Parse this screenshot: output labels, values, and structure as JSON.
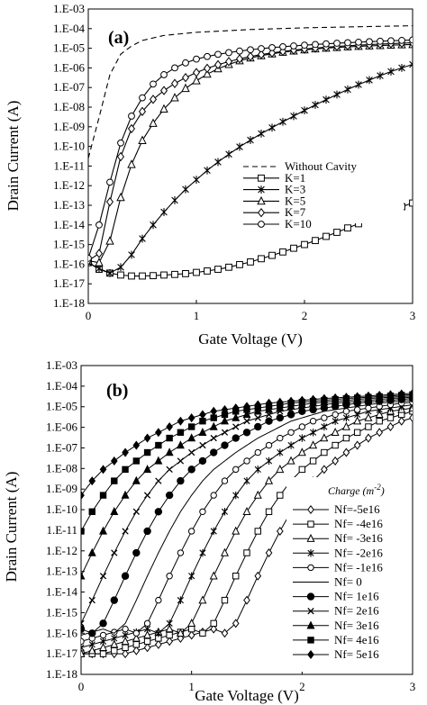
{
  "chart_data": [
    {
      "type": "line",
      "panel_label": "(a)",
      "xlabel": "Gate Voltage (V)",
      "ylabel": "Drain Current (A)",
      "xlim": [
        0,
        3
      ],
      "ylim_log10": [
        -18,
        -3
      ],
      "y_scale": "log",
      "xticks": [
        "0",
        "1",
        "2",
        "3"
      ],
      "yticks": [
        "1.E-03",
        "1.E-04",
        "1.E-05",
        "1.E-06",
        "1.E-07",
        "1.E-08",
        "1.E-09",
        "1.E-10",
        "1.E-11",
        "1.E-12",
        "1.E-13",
        "1.E-14",
        "1.E-15",
        "1.E-16",
        "1.E-17",
        "1.E-18"
      ],
      "grid": false,
      "legend_position": "center-right",
      "series": [
        {
          "name": "Without Cavity",
          "marker": "none",
          "dash": true,
          "x": [
            0,
            0.1,
            0.2,
            0.3,
            0.4,
            0.5,
            0.7,
            1.0,
            1.5,
            2.0,
            2.5,
            3.0
          ],
          "y": [
            "2.5e-11",
            "3e-9",
            "4.5e-7",
            "5e-6",
            "1.3e-5",
            "2.5e-5",
            "4.5e-5",
            "6.5e-5",
            "9e-5",
            "1.1e-4",
            "1.25e-4",
            "1.4e-4"
          ]
        },
        {
          "name": "K=1",
          "marker": "square",
          "x": [
            0,
            0.1,
            0.2,
            0.3,
            0.4,
            0.5,
            0.6,
            0.7,
            0.8,
            0.9,
            1.0,
            1.1,
            1.2,
            1.3,
            1.4,
            1.5,
            1.6,
            1.7,
            1.8,
            1.9,
            2.0,
            2.1,
            2.2,
            2.3,
            2.4,
            2.5,
            2.6,
            2.7,
            2.8,
            2.9,
            3.0
          ],
          "y": [
            "1.2e-16",
            "5.5e-17",
            "3.5e-17",
            "2.8e-17",
            "2.5e-17",
            "2.5e-17",
            "2.6e-17",
            "2.8e-17",
            "3e-17",
            "3.3e-17",
            "3.8e-17",
            "4.5e-17",
            "5.5e-17",
            "7e-17",
            "9.5e-17",
            "1.3e-16",
            "1.9e-16",
            "2.8e-16",
            "4.2e-16",
            "6.5e-16",
            "1e-15",
            "1.6e-15",
            "2.6e-15",
            "4.2e-15",
            "7e-15",
            "1.15e-14",
            "1.9e-14",
            "3.2e-14",
            "5.3e-14",
            "8.5e-14",
            "1.3e-13"
          ]
        },
        {
          "name": "K=3",
          "marker": "star",
          "x": [
            0,
            0.1,
            0.2,
            0.3,
            0.4,
            0.5,
            0.6,
            0.7,
            0.8,
            0.9,
            1.0,
            1.1,
            1.2,
            1.3,
            1.4,
            1.5,
            1.6,
            1.7,
            1.8,
            1.9,
            2.0,
            2.1,
            2.2,
            2.3,
            2.4,
            2.5,
            2.6,
            2.7,
            2.8,
            2.9,
            3.0
          ],
          "y": [
            "1.2e-16",
            "6e-17",
            "3.5e-17",
            "7e-17",
            "3e-16",
            "2e-15",
            "1e-14",
            "4.5e-14",
            "1.8e-13",
            "6.5e-13",
            "2e-12",
            "6e-12",
            "1.6e-11",
            "4e-11",
            "9.5e-11",
            "2.1e-10",
            "4.5e-10",
            "9e-10",
            "1.8e-9",
            "3.5e-9",
            "6.8e-9",
            "1.3e-8",
            "2.4e-8",
            "4.4e-8",
            "8e-8",
            "1.4e-7",
            "2.4e-7",
            "4e-7",
            "6.5e-7",
            "1e-6",
            "1.5e-6"
          ]
        },
        {
          "name": "K=5",
          "marker": "triangle",
          "x": [
            0,
            0.1,
            0.2,
            0.3,
            0.4,
            0.5,
            0.6,
            0.7,
            0.8,
            0.9,
            1.0,
            1.1,
            1.2,
            1.3,
            1.4,
            1.5,
            1.6,
            1.7,
            1.8,
            1.9,
            2.0,
            2.1,
            2.2,
            2.3,
            2.4,
            2.5,
            2.6,
            2.7,
            2.8,
            2.9,
            3.0
          ],
          "y": [
            "1.5e-16",
            "1.2e-16",
            "1.5e-15",
            "2.5e-13",
            "1.2e-11",
            "2e-10",
            "1.5e-9",
            "8e-9",
            "3e-8",
            "9e-8",
            "2.2e-7",
            "4.8e-7",
            "9e-7",
            "1.5e-6",
            "2.3e-6",
            "3.2e-6",
            "4.2e-6",
            "5.2e-6",
            "6.3e-6",
            "7.3e-6",
            "8.3e-6",
            "9.3e-6",
            "1.02e-5",
            "1.1e-5",
            "1.18e-5",
            "1.25e-5",
            "1.32e-5",
            "1.38e-5",
            "1.44e-5",
            "1.5e-5",
            "1.55e-5"
          ]
        },
        {
          "name": "K=7",
          "marker": "diamond",
          "x": [
            0,
            0.1,
            0.2,
            0.3,
            0.4,
            0.5,
            0.6,
            0.7,
            0.8,
            0.9,
            1.0,
            1.1,
            1.2,
            1.3,
            1.4,
            1.5,
            1.6,
            1.7,
            1.8,
            1.9,
            2.0,
            2.1,
            2.2,
            2.3,
            2.4,
            2.5,
            2.6,
            2.7,
            2.8,
            2.9,
            3.0
          ],
          "y": [
            "1.5e-16",
            "3.5e-16",
            "1.5e-13",
            "3e-11",
            "8e-10",
            "6e-9",
            "2.5e-8",
            "7e-8",
            "1.6e-7",
            "3.2e-7",
            "5.8e-7",
            "9.5e-7",
            "1.45e-6",
            "2.1e-6",
            "2.9e-6",
            "3.8e-6",
            "4.8e-6",
            "5.8e-6",
            "6.9e-6",
            "8e-6",
            "9.1e-6",
            "1.02e-5",
            "1.13e-5",
            "1.24e-5",
            "1.34e-5",
            "1.44e-5",
            "1.54e-5",
            "1.63e-5",
            "1.72e-5",
            "1.81e-5",
            "1.9e-5"
          ]
        },
        {
          "name": "K=10",
          "marker": "circle",
          "x": [
            0,
            0.1,
            0.2,
            0.3,
            0.4,
            0.5,
            0.6,
            0.7,
            0.8,
            0.9,
            1.0,
            1.1,
            1.2,
            1.3,
            1.4,
            1.5,
            1.6,
            1.7,
            1.8,
            1.9,
            2.0,
            2.1,
            2.2,
            2.3,
            2.4,
            2.5,
            2.6,
            2.7,
            2.8,
            2.9,
            3.0
          ],
          "y": [
            "2e-16",
            "1e-14",
            "1.5e-12",
            "1.5e-10",
            "3.5e-9",
            "3e-8",
            "1.5e-7",
            "4.5e-7",
            "1e-6",
            "1.8e-6",
            "2.8e-6",
            "3.8e-6",
            "4.9e-6",
            "6e-6",
            "7.2e-6",
            "8.4e-6",
            "9.6e-6",
            "1.08e-5",
            "1.2e-5",
            "1.32e-5",
            "1.44e-5",
            "1.56e-5",
            "1.68e-5",
            "1.8e-5",
            "1.92e-5",
            "2.04e-5",
            "2.16e-5",
            "2.28e-5",
            "2.4e-5",
            "2.52e-5",
            "2.64e-5"
          ]
        }
      ]
    },
    {
      "type": "line",
      "panel_label": "(b)",
      "xlabel": "Gate Voltage (V)",
      "ylabel": "Drain Current (A)",
      "xlim": [
        0,
        3
      ],
      "ylim_log10": [
        -18,
        -3
      ],
      "y_scale": "log",
      "xticks": [
        "0",
        "1",
        "2",
        "3"
      ],
      "yticks": [
        "1.E-03",
        "1.E-04",
        "1.E-05",
        "1.E-06",
        "1.E-07",
        "1.E-08",
        "1.E-09",
        "1.E-10",
        "1.E-11",
        "1.E-12",
        "1.E-13",
        "1.E-14",
        "1.E-15",
        "1.E-16",
        "1.E-17",
        "1.E-18"
      ],
      "grid": false,
      "legend_title": "Charge  (m",
      "legend_title_sup": "-2",
      "legend_title_end": ")",
      "legend_position": "bottom-right",
      "series": [
        {
          "name": "Nf=-5e16",
          "marker": "diamond",
          "shift": 1.2
        },
        {
          "name": "Nf= -4e16",
          "marker": "square",
          "shift": 1.0
        },
        {
          "name": "Nf= -3e16",
          "marker": "triangle",
          "shift": 0.8
        },
        {
          "name": "Nf= -2e16",
          "marker": "star",
          "shift": 0.6
        },
        {
          "name": "Nf= -1e16",
          "marker": "circle",
          "shift": 0.4
        },
        {
          "name": "Nf= 0",
          "marker": "none",
          "shift": 0.2
        },
        {
          "name": "Nf= 1e16",
          "marker": "circle-filled",
          "shift": 0.0
        },
        {
          "name": "Nf= 2e16",
          "marker": "x",
          "shift": -0.2
        },
        {
          "name": "Nf= 3e16",
          "marker": "triangle-filled",
          "shift": -0.4
        },
        {
          "name": "Nf= 4e16",
          "marker": "square-filled",
          "shift": -0.6
        },
        {
          "name": "Nf= 5e16",
          "marker": "diamond-filled",
          "shift": -0.8
        }
      ],
      "base_curve": {
        "note_units": "x in V, y in A, curve for Nf=1e16 is base; others are shifted along x",
        "x": [
          -0.8,
          0,
          0.1,
          0.2,
          0.3,
          0.4,
          0.5,
          0.6,
          0.7,
          0.8,
          0.9,
          1.0,
          1.2,
          1.4,
          1.7,
          2.0,
          2.5,
          3.0,
          4.2
        ],
        "y": [
          "1e-17",
          "1.6e-16",
          "1e-16",
          "3e-16",
          "4e-15",
          "6e-14",
          "8e-13",
          "9e-12",
          "8e-11",
          "5e-10",
          "2.5e-9",
          "9e-9",
          "6e-8",
          "3e-7",
          "2e-6",
          "6e-6",
          "1.5e-5",
          "2.5e-5",
          "6e-5"
        ]
      }
    }
  ]
}
